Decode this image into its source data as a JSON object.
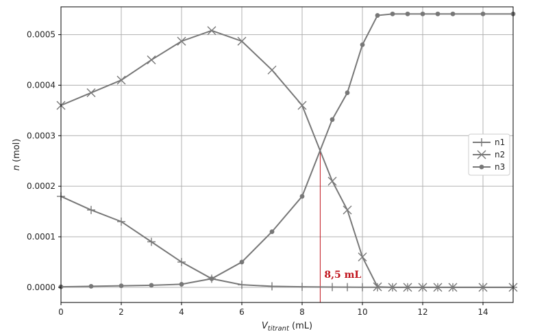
{
  "chart_data": {
    "type": "line",
    "xlabel_main": "V",
    "xlabel_sub": "titrant",
    "xlabel_unit": " (mL)",
    "ylabel_italic": "n",
    "ylabel_unit": " (mol)",
    "xlim": [
      0,
      15
    ],
    "ylim": [
      -3e-05,
      0.000555
    ],
    "grid": true,
    "legend_position": "right",
    "x_ticks": [
      0,
      2,
      4,
      6,
      8,
      10,
      12,
      14
    ],
    "x_tick_labels": [
      "0",
      "2",
      "4",
      "6",
      "8",
      "10",
      "12",
      "14"
    ],
    "y_ticks": [
      0,
      0.0001,
      0.0002,
      0.0003,
      0.0004,
      0.0005
    ],
    "y_tick_labels": [
      "0.0000",
      "0.0001",
      "0.0002",
      "0.0003",
      "0.0004",
      "0.0005"
    ],
    "series": [
      {
        "name": "n1",
        "marker": "plus",
        "points": [
          [
            0,
            0.00018
          ],
          [
            1,
            0.000153
          ],
          [
            2,
            0.00013
          ],
          [
            3,
            9e-05
          ],
          [
            4,
            5e-05
          ],
          [
            5,
            1.7e-05
          ],
          [
            6,
            5e-06
          ],
          [
            7,
            2e-06
          ],
          [
            8,
            1e-06
          ],
          [
            9,
            5e-07
          ],
          [
            9.5,
            3e-07
          ],
          [
            10,
            2e-07
          ],
          [
            10.5,
            1e-07
          ],
          [
            11,
            0
          ],
          [
            11.5,
            0
          ],
          [
            12,
            0
          ],
          [
            12.5,
            0
          ],
          [
            13,
            0
          ],
          [
            14,
            0
          ],
          [
            15,
            0
          ]
        ]
      },
      {
        "name": "n2",
        "marker": "x",
        "points": [
          [
            0,
            0.00036
          ],
          [
            1,
            0.000385
          ],
          [
            2,
            0.00041
          ],
          [
            3,
            0.00045
          ],
          [
            4,
            0.000487
          ],
          [
            5,
            0.000508
          ],
          [
            6,
            0.000487
          ],
          [
            7,
            0.00043
          ],
          [
            8,
            0.00036
          ],
          [
            9,
            0.00021
          ],
          [
            9.5,
            0.000153
          ],
          [
            10,
            6e-05
          ],
          [
            10.5,
            1e-06
          ],
          [
            11,
            0
          ],
          [
            11.5,
            0
          ],
          [
            12,
            0
          ],
          [
            12.5,
            0
          ],
          [
            13,
            0
          ],
          [
            14,
            0
          ],
          [
            15,
            0
          ]
        ]
      },
      {
        "name": "n3",
        "marker": "dot",
        "points": [
          [
            0,
            1e-06
          ],
          [
            1,
            2e-06
          ],
          [
            2,
            3e-06
          ],
          [
            3,
            4e-06
          ],
          [
            4,
            6e-06
          ],
          [
            5,
            1.7e-05
          ],
          [
            6,
            5e-05
          ],
          [
            7,
            0.00011
          ],
          [
            8,
            0.00018
          ],
          [
            9,
            0.000332
          ],
          [
            9.5,
            0.000385
          ],
          [
            10,
            0.00048
          ],
          [
            10.5,
            0.000538
          ],
          [
            11,
            0.000541
          ],
          [
            11.5,
            0.000541
          ],
          [
            12,
            0.000541
          ],
          [
            12.5,
            0.000541
          ],
          [
            13,
            0.000541
          ],
          [
            14,
            0.000541
          ],
          [
            15,
            0.000541
          ]
        ]
      }
    ],
    "annotation": {
      "text": "8,5 mL",
      "x": 8.6,
      "y_top": 0.00027,
      "color": "#c0121b"
    },
    "colors": {
      "series": "#777777",
      "grid": "#b0b0b0",
      "annotation": "#c0121b"
    }
  }
}
